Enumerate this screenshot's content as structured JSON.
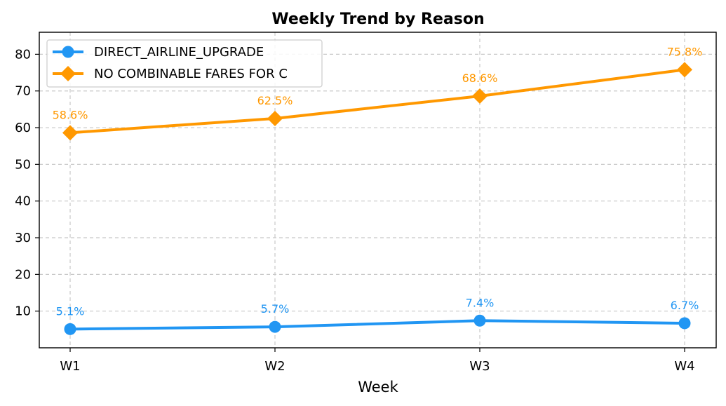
{
  "chart_data": {
    "type": "line",
    "title": "Weekly Trend by Reason",
    "xlabel": "Week",
    "ylabel": "",
    "categories": [
      "W1",
      "W2",
      "W3",
      "W4"
    ],
    "ylim": [
      0,
      86
    ],
    "yticks": [
      10,
      20,
      30,
      40,
      50,
      60,
      70,
      80
    ],
    "grid": true,
    "legend_position": "top-left",
    "series": [
      {
        "name": "DIRECT_AIRLINE_UPGRADE",
        "values": [
          5.1,
          5.7,
          7.4,
          6.7
        ],
        "labels": [
          "5.1%",
          "5.7%",
          "7.4%",
          "6.7%"
        ],
        "color": "#2196F3",
        "marker": "circle"
      },
      {
        "name": "NO COMBINABLE FARES FOR C",
        "values": [
          58.6,
          62.5,
          68.6,
          75.8
        ],
        "labels": [
          "58.6%",
          "62.5%",
          "68.6%",
          "75.8%"
        ],
        "color": "#FF9800",
        "marker": "diamond"
      }
    ]
  }
}
